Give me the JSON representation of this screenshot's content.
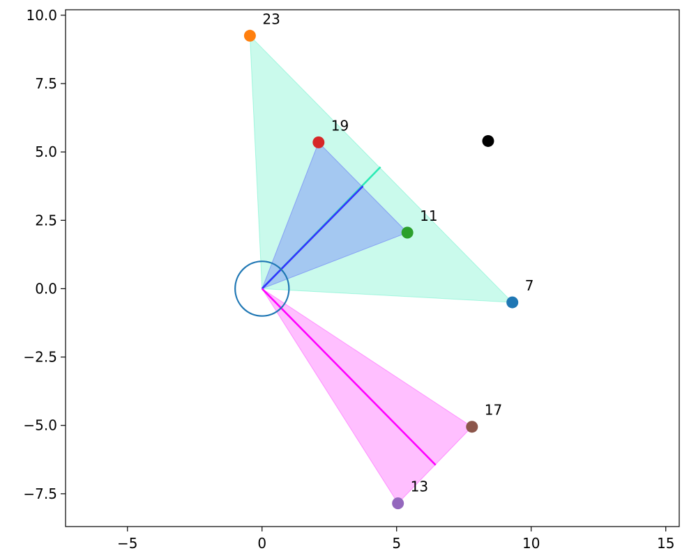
{
  "chart_data": {
    "type": "scatter",
    "title": "",
    "xlabel": "",
    "ylabel": "",
    "xlim": [
      -7.3,
      15.5
    ],
    "ylim": [
      -8.7,
      10.2
    ],
    "x_ticks": [
      -5,
      0,
      5,
      10,
      15
    ],
    "x_tick_labels": [
      "−5",
      "0",
      "5",
      "10",
      "15"
    ],
    "y_ticks": [
      -7.5,
      -5.0,
      -2.5,
      0.0,
      2.5,
      5.0,
      7.5,
      10.0
    ],
    "y_tick_labels": [
      "−7.5",
      "−5.0",
      "−2.5",
      "0.0",
      "2.5",
      "5.0",
      "7.5",
      "10.0"
    ],
    "grid": false,
    "legend": "none",
    "points": [
      {
        "label": "7",
        "x": 9.3,
        "y": -0.5,
        "color": "#1f77b4"
      },
      {
        "label": "23",
        "x": -0.45,
        "y": 9.25,
        "color": "#ff7f0e"
      },
      {
        "label": "11",
        "x": 5.4,
        "y": 2.05,
        "color": "#2ca02c"
      },
      {
        "label": "19",
        "x": 2.1,
        "y": 5.35,
        "color": "#d62728"
      },
      {
        "label": "13",
        "x": 5.05,
        "y": -7.85,
        "color": "#9467bd"
      },
      {
        "label": "17",
        "x": 7.8,
        "y": -5.05,
        "color": "#8c564b"
      }
    ],
    "extra_points": [
      {
        "x": 8.4,
        "y": 5.4,
        "color": "#000000"
      }
    ],
    "circle": {
      "center": [
        0,
        0
      ],
      "radius": 1.0,
      "color": "#1f77b4"
    },
    "wedges": [
      {
        "vertices": [
          [
            0,
            0
          ],
          [
            9.3,
            -0.5
          ],
          [
            -0.45,
            9.25
          ]
        ],
        "fill": "#2aeab4",
        "opacity": 0.25
      },
      {
        "vertices": [
          [
            0,
            0
          ],
          [
            5.4,
            2.05
          ],
          [
            2.1,
            5.35
          ]
        ],
        "fill": "#3333ff",
        "opacity": 0.25
      },
      {
        "vertices": [
          [
            0,
            0
          ],
          [
            5.05,
            -7.85
          ],
          [
            7.8,
            -5.05
          ]
        ],
        "fill": "#ff00ff",
        "opacity": 0.25
      }
    ],
    "segments": [
      {
        "from": [
          0,
          0
        ],
        "to": [
          4.4,
          4.45
        ],
        "color": "#2aeab4"
      },
      {
        "from": [
          0,
          0
        ],
        "to": [
          3.75,
          3.75
        ],
        "color": "#3333ff"
      },
      {
        "from": [
          0,
          0
        ],
        "to": [
          6.45,
          -6.45
        ],
        "color": "#ff00ff"
      }
    ]
  }
}
